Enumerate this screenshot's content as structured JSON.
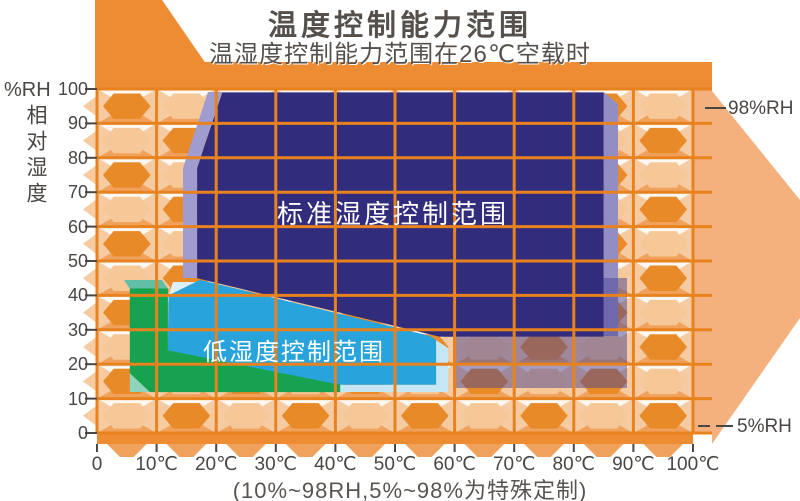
{
  "chart_data": {
    "type": "area",
    "title": "温度控制能力范围",
    "subtitle": "温湿度控制能力范围在26℃空载时",
    "footnote": "(10%~98RH,5%~98%为特殊定制)",
    "x_axis": {
      "unit": "℃",
      "range": [
        0,
        100
      ],
      "tick_values": [
        0,
        10,
        20,
        30,
        40,
        50,
        60,
        70,
        80,
        90,
        100
      ],
      "tick_labels": [
        "0",
        "10℃",
        "20℃",
        "30℃",
        "40℃",
        "50℃",
        "60℃",
        "70℃",
        "80℃",
        "90℃",
        "100℃"
      ]
    },
    "y_axis": {
      "title": "%RH",
      "title_vertical": "相对湿度",
      "range": [
        0,
        100
      ],
      "tick_values": [
        0,
        10,
        20,
        30,
        40,
        50,
        60,
        70,
        80,
        90,
        100
      ],
      "tick_labels": [
        "0",
        "10",
        "20",
        "30",
        "40",
        "50",
        "60",
        "70",
        "80",
        "90",
        "100"
      ]
    },
    "right_labels": {
      "top": "98%RH",
      "bottom": "5%RH"
    },
    "regions": [
      {
        "name": "standard-humidity-range",
        "label": "标准湿度控制范围",
        "color": "#322c7d",
        "points_temp_rh": [
          [
            21,
            99
          ],
          [
            85,
            99
          ],
          [
            85,
            28
          ],
          [
            57.5,
            28
          ],
          [
            16.8,
            45
          ],
          [
            16.8,
            77
          ]
        ]
      },
      {
        "name": "low-humidity-range",
        "label": "低湿度控制范围",
        "color": "#29a3dc",
        "points_temp_rh": [
          [
            12,
            40
          ],
          [
            17.3,
            44.5
          ],
          [
            55.9,
            28.2
          ],
          [
            56.9,
            27
          ],
          [
            56.9,
            14
          ],
          [
            39,
            14
          ],
          [
            11.9,
            24
          ]
        ]
      },
      {
        "name": "green-range",
        "label": "",
        "color": "#16a24e",
        "points_temp_rh": [
          [
            5.5,
            42
          ],
          [
            11.9,
            42
          ],
          [
            11.9,
            24
          ],
          [
            40.8,
            14
          ],
          [
            40.8,
            11.9
          ],
          [
            8.9,
            11.9
          ],
          [
            5.5,
            17.4
          ]
        ]
      }
    ],
    "colors": {
      "grid_line": "#e8821f",
      "frame_orange": "#ed8c33",
      "flat_orange": "#f5b17d",
      "pattern_cream": "#fbf2e6",
      "pattern_top": "#fdf8f1",
      "pattern_side": "#f6cba2",
      "pattern_bottom": "#f0a25c",
      "pattern_hex_dark": "#e88a28",
      "pattern_hex_light": "#f6c897",
      "navy": "#322c7d",
      "navy_bevel_left": "#a09cd0",
      "navy_bevel_right": "#928ec4",
      "purple_shadow": "#4a4490",
      "cyan": "#29a3dc",
      "cyan_pale": "#c6e6f4",
      "cyan_wedge": "#dceef7",
      "green": "#16a24e",
      "green_bevel_top": "#5fbea3",
      "green_bevel_bottom": "#8ed4bc",
      "tick_color": "#4a4644"
    }
  }
}
